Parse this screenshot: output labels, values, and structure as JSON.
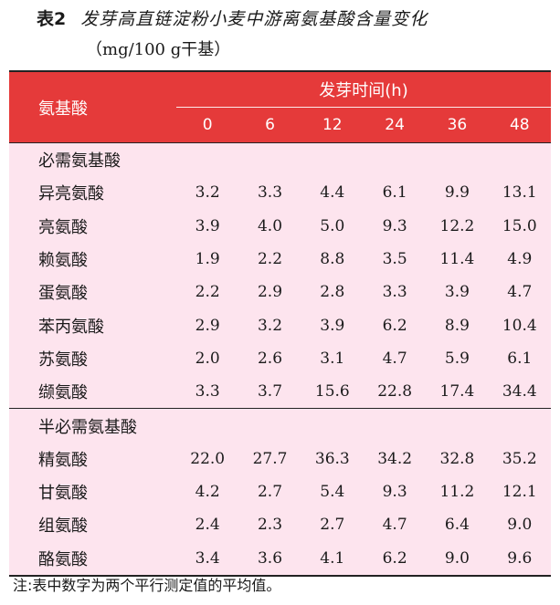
{
  "caption": {
    "label": "表2",
    "title": "发芽高直链淀粉小麦中游离氨基酸含量变化",
    "unit": "（mg/100 g干基）"
  },
  "table": {
    "row_header": "氨基酸",
    "group_header": "发芽时间(h)",
    "times": [
      "0",
      "6",
      "12",
      "24",
      "36",
      "48"
    ],
    "sections": [
      {
        "title": "必需氨基酸",
        "rows": [
          {
            "name": "异亮氨酸",
            "values": [
              "3.2",
              "3.3",
              "4.4",
              "6.1",
              "9.9",
              "13.1"
            ]
          },
          {
            "name": "亮氨酸",
            "values": [
              "3.9",
              "4.0",
              "5.0",
              "9.3",
              "12.2",
              "15.0"
            ]
          },
          {
            "name": "赖氨酸",
            "values": [
              "1.9",
              "2.2",
              "8.8",
              "3.5",
              "11.4",
              "4.9"
            ]
          },
          {
            "name": "蛋氨酸",
            "values": [
              "2.2",
              "2.9",
              "2.8",
              "3.3",
              "3.9",
              "4.7"
            ]
          },
          {
            "name": "苯丙氨酸",
            "values": [
              "2.9",
              "3.2",
              "3.9",
              "6.2",
              "8.9",
              "10.4"
            ]
          },
          {
            "name": "苏氨酸",
            "values": [
              "2.0",
              "2.6",
              "3.1",
              "4.7",
              "5.9",
              "6.1"
            ]
          },
          {
            "name": "缬氨酸",
            "values": [
              "3.3",
              "3.7",
              "15.6",
              "22.8",
              "17.4",
              "34.4"
            ]
          }
        ]
      },
      {
        "title": "半必需氨基酸",
        "rows": [
          {
            "name": "精氨酸",
            "values": [
              "22.0",
              "27.7",
              "36.3",
              "34.2",
              "32.8",
              "35.2"
            ]
          },
          {
            "name": "甘氨酸",
            "values": [
              "4.2",
              "2.7",
              "5.4",
              "9.3",
              "11.2",
              "12.1"
            ]
          },
          {
            "name": "组氨酸",
            "values": [
              "2.4",
              "2.3",
              "2.7",
              "4.7",
              "6.4",
              "9.0"
            ]
          },
          {
            "name": "酪氨酸",
            "values": [
              "3.4",
              "3.6",
              "4.1",
              "6.2",
              "9.0",
              "9.6"
            ]
          }
        ]
      }
    ]
  },
  "note": "注:表中数字为两个平行测定值的平均值。",
  "colors": {
    "header_bg": "#e53a3a",
    "body_bg": "#fde4ee",
    "rule": "#222222"
  }
}
